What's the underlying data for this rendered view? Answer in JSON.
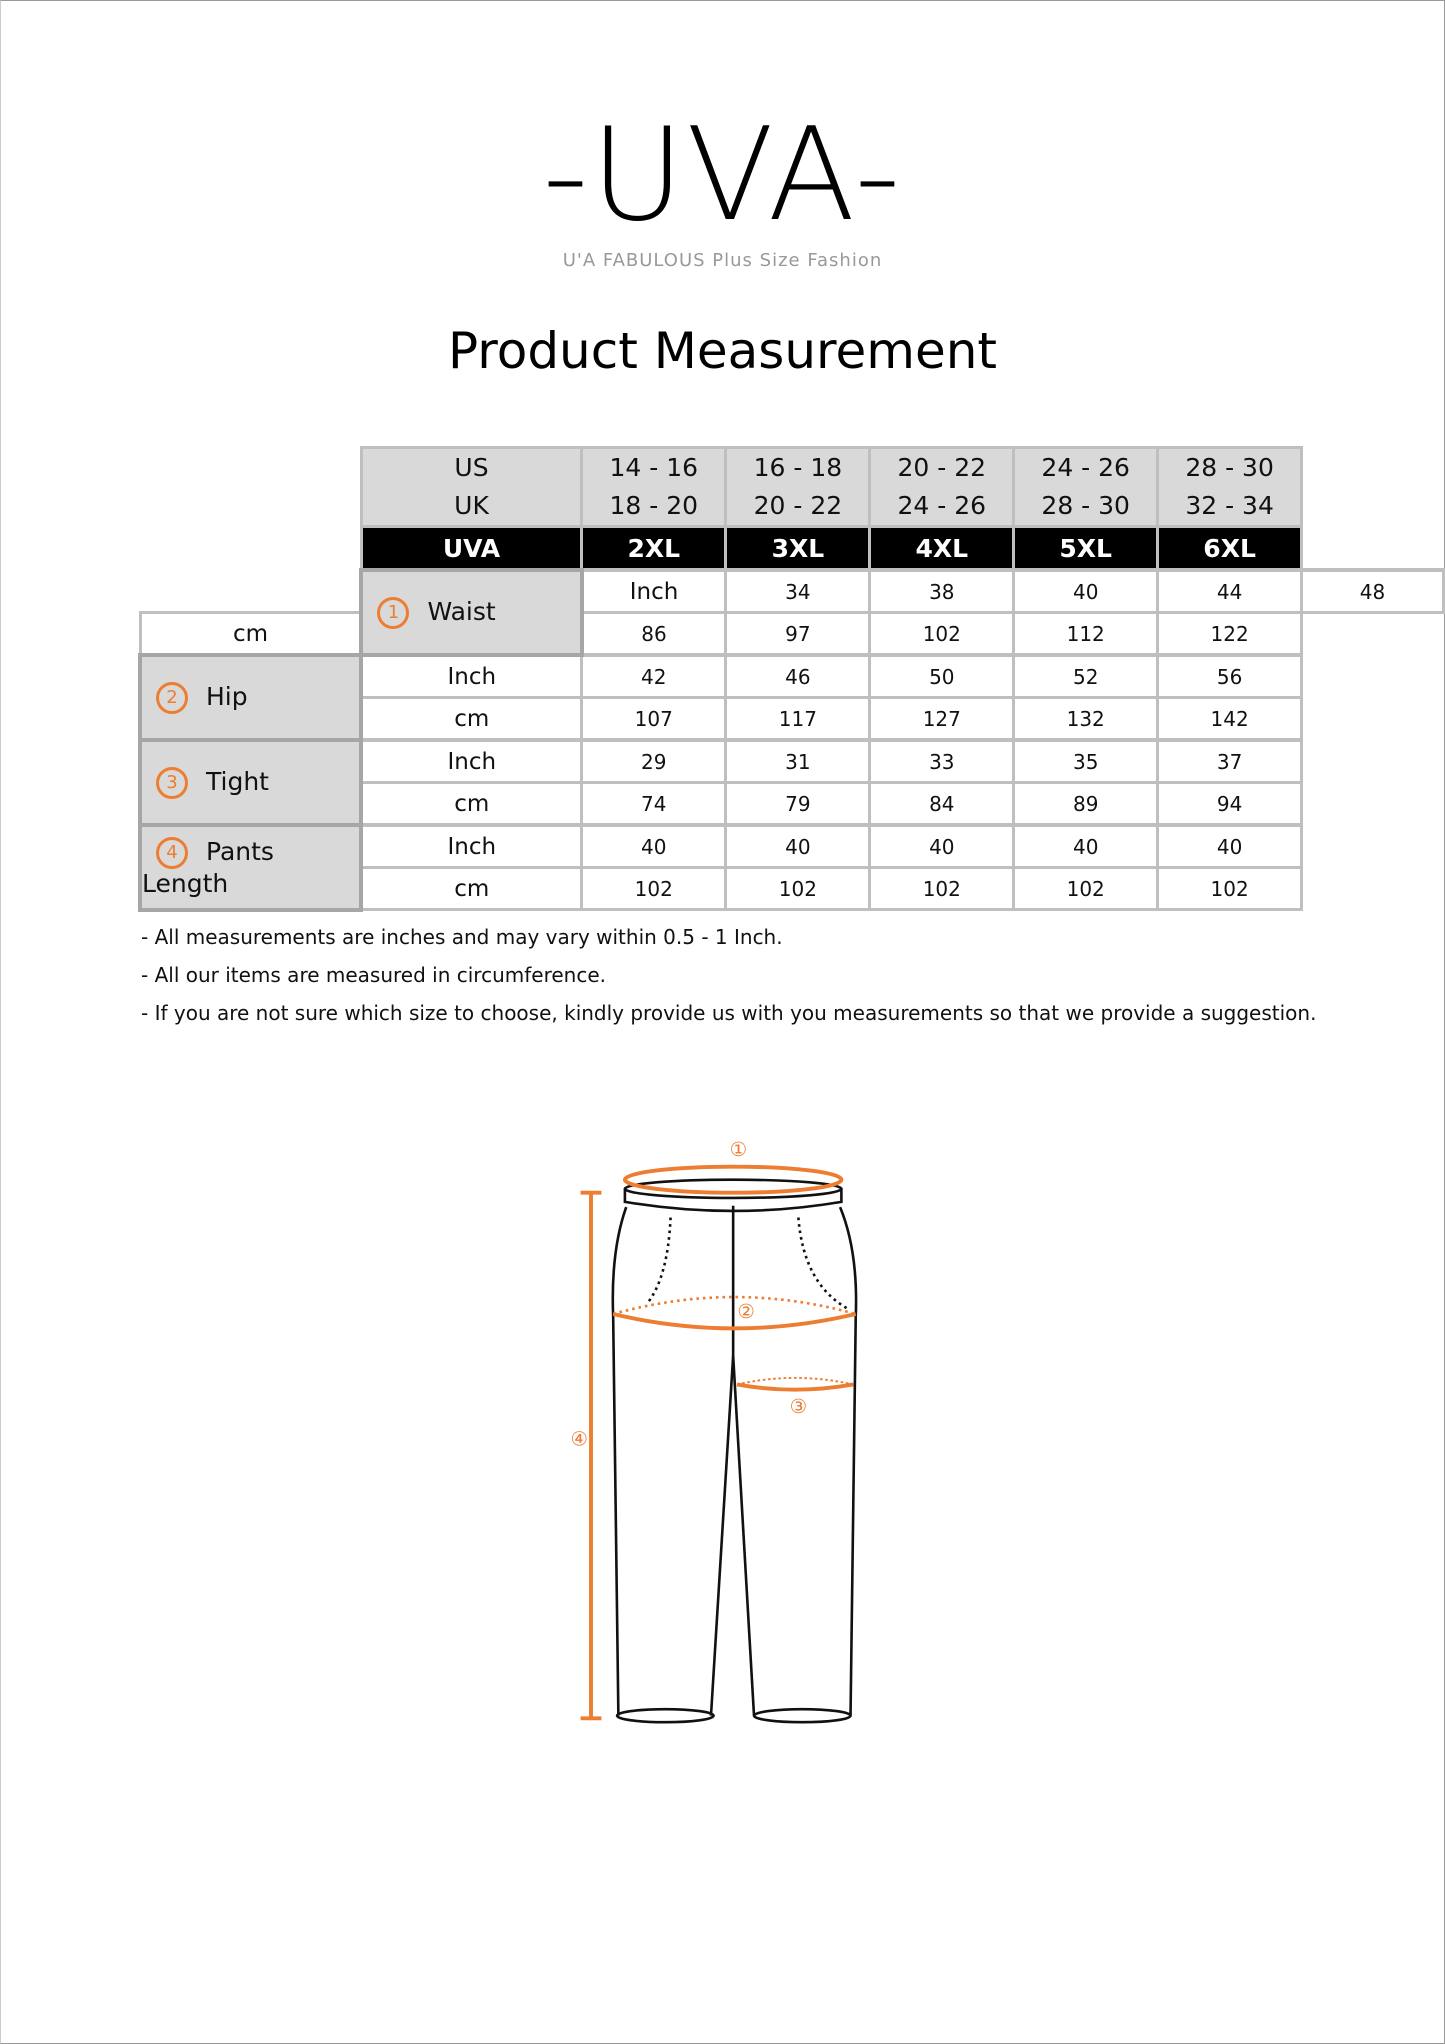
{
  "logo": {
    "text": "-UVA-",
    "tagline": "U'A FABULOUS Plus Size Fashion"
  },
  "title": "Product Measurement",
  "table": {
    "us_label": "US",
    "uk_label": "UK",
    "uva_label": "UVA",
    "sizes": [
      {
        "us": "14 - 16",
        "uk": "18 - 20",
        "uva": "2XL"
      },
      {
        "us": "16 - 18",
        "uk": "20 - 22",
        "uva": "3XL"
      },
      {
        "us": "20 - 22",
        "uk": "24 - 26",
        "uva": "4XL"
      },
      {
        "us": "24 - 26",
        "uk": "28 - 30",
        "uva": "5XL"
      },
      {
        "us": "28 - 30",
        "uk": "32 - 34",
        "uva": "6XL"
      }
    ],
    "unit_inch": "Inch",
    "unit_cm": "cm",
    "rows": [
      {
        "num": "1",
        "label": "Waist",
        "inch": [
          "34",
          "38",
          "40",
          "44",
          "48"
        ],
        "cm": [
          "86",
          "97",
          "102",
          "112",
          "122"
        ]
      },
      {
        "num": "2",
        "label": "Hip",
        "inch": [
          "42",
          "46",
          "50",
          "52",
          "56"
        ],
        "cm": [
          "107",
          "117",
          "127",
          "132",
          "142"
        ]
      },
      {
        "num": "3",
        "label": "Tight",
        "inch": [
          "29",
          "31",
          "33",
          "35",
          "37"
        ],
        "cm": [
          "74",
          "79",
          "84",
          "89",
          "94"
        ]
      },
      {
        "num": "4",
        "label": "Pants Length",
        "inch": [
          "40",
          "40",
          "40",
          "40",
          "40"
        ],
        "cm": [
          "102",
          "102",
          "102",
          "102",
          "102"
        ]
      }
    ]
  },
  "notes": [
    "- All measurements are inches and may vary within 0.5 - 1 Inch.",
    "- All our items are measured in circumference.",
    "- If you are not sure which size to choose, kindly provide us with you measurements so that we provide a suggestion."
  ],
  "diagram": {
    "markers": [
      "①",
      "②",
      "③",
      "④"
    ],
    "accent": "#ed7d31"
  }
}
